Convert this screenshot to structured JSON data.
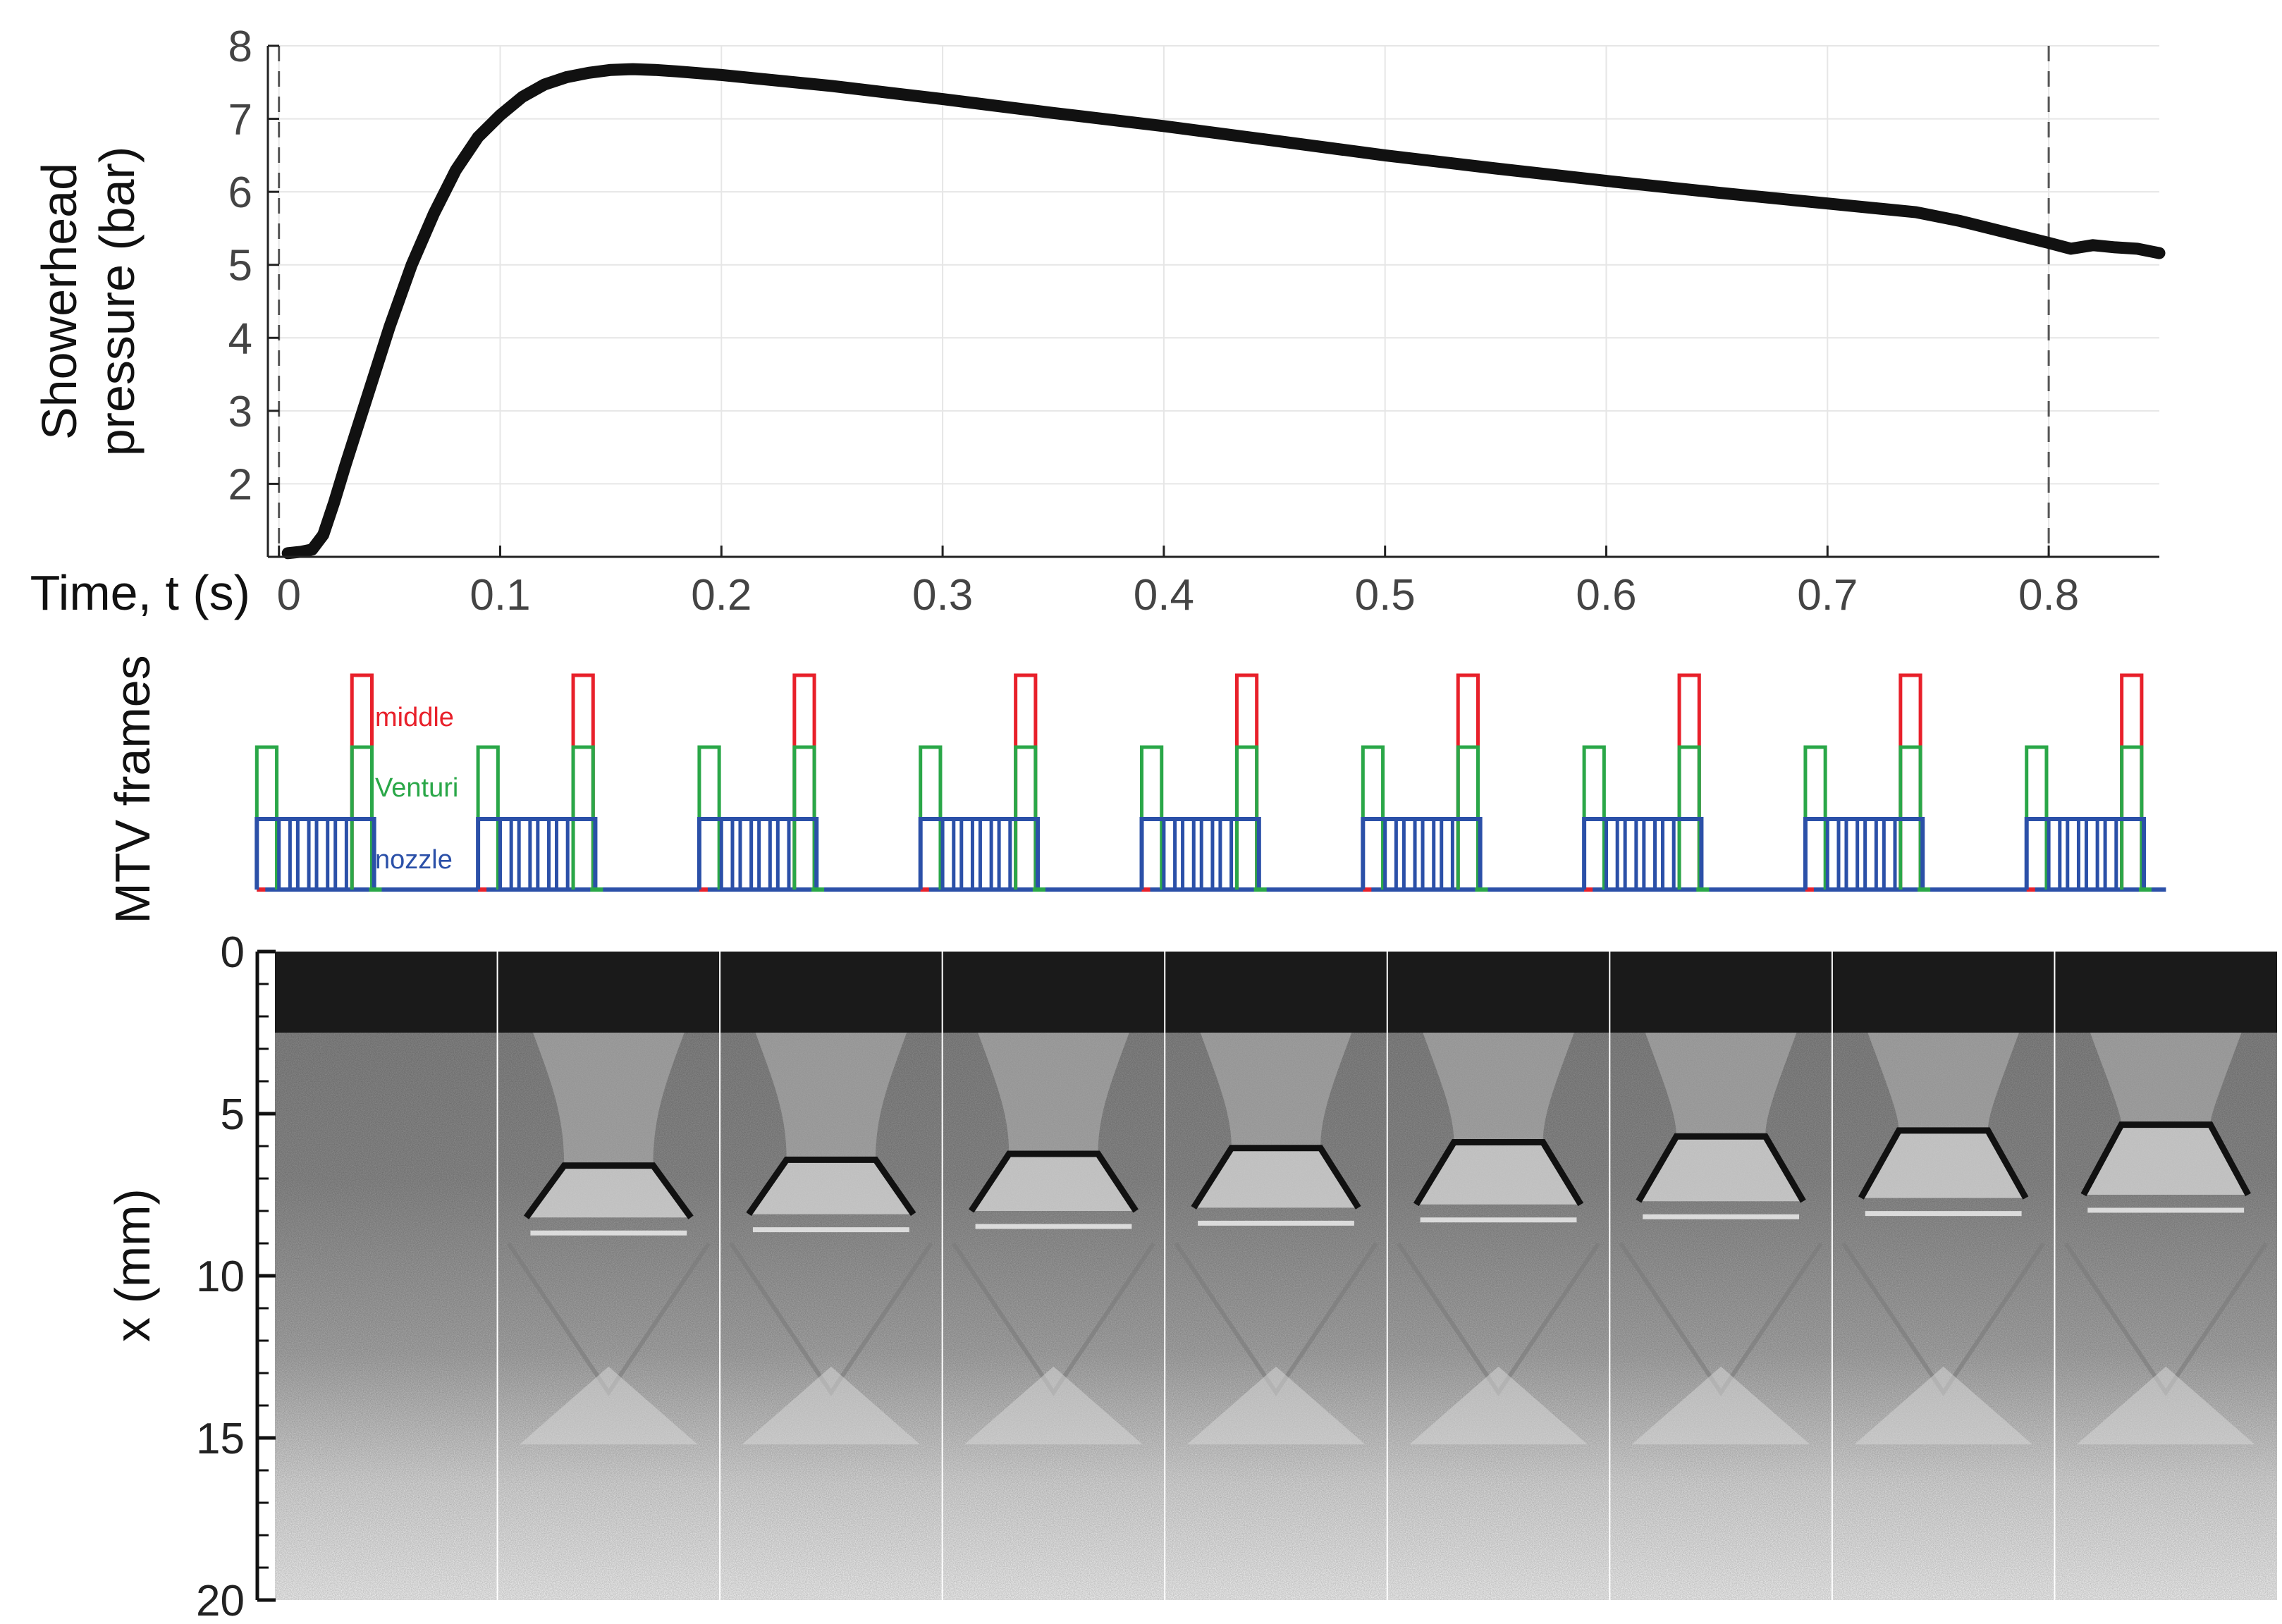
{
  "chart_data": [
    {
      "type": "line",
      "xlabel": "Time, t (s)",
      "ylabel": [
        "Showerhead",
        "pressure (bar)"
      ],
      "xlim": [
        -0.005,
        0.85
      ],
      "ylim": [
        1,
        8
      ],
      "xticks": [
        0,
        0.1,
        0.2,
        0.3,
        0.4,
        0.5,
        0.6,
        0.7,
        0.8
      ],
      "xtick_labels": [
        "0",
        "0.1",
        "0.2",
        "0.3",
        "0.4",
        "0.5",
        "0.6",
        "0.7",
        "0.8"
      ],
      "yticks": [
        2,
        3,
        4,
        5,
        6,
        7,
        8
      ],
      "ytick_labels": [
        "2",
        "3",
        "4",
        "5",
        "6",
        "7",
        "8"
      ],
      "grid": true,
      "reference_lines_x": [
        0,
        0.8
      ],
      "colors": {
        "line": "#111111",
        "grid": "#e6e6e6",
        "reference": "#555555"
      },
      "series": [
        {
          "x": [
            0.004,
            0.01,
            0.015,
            0.02,
            0.025,
            0.03,
            0.04,
            0.05,
            0.06,
            0.07,
            0.08,
            0.09,
            0.1,
            0.11,
            0.12,
            0.13,
            0.14,
            0.15,
            0.16,
            0.17,
            0.18,
            0.2,
            0.25,
            0.3,
            0.35,
            0.4,
            0.45,
            0.5,
            0.55,
            0.6,
            0.65,
            0.7,
            0.74,
            0.76,
            0.78,
            0.8,
            0.81,
            0.82,
            0.83,
            0.84,
            0.85
          ],
          "y": [
            1.05,
            1.07,
            1.1,
            1.3,
            1.75,
            2.25,
            3.2,
            4.15,
            5.0,
            5.7,
            6.3,
            6.75,
            7.05,
            7.3,
            7.47,
            7.57,
            7.63,
            7.67,
            7.68,
            7.67,
            7.65,
            7.6,
            7.45,
            7.27,
            7.08,
            6.9,
            6.7,
            6.5,
            6.32,
            6.15,
            5.99,
            5.84,
            5.72,
            5.6,
            5.45,
            5.3,
            5.22,
            5.27,
            5.24,
            5.22,
            5.16
          ]
        }
      ]
    },
    {
      "type": "line",
      "ylabel": "MTV frames",
      "labels": {
        "middle": "middle",
        "venturi": "Venturi",
        "nozzle": "nozzle"
      },
      "colors": {
        "middle": "#e8202a",
        "venturi": "#2aa748",
        "nozzle": "#2b50a8"
      },
      "cycle_start_times_s": [
        -0.01,
        0.09,
        0.19,
        0.29,
        0.39,
        0.49,
        0.59,
        0.69,
        0.79
      ]
    },
    {
      "type": "other",
      "ylabel": "x (mm)",
      "ylim": [
        0,
        20
      ],
      "yticks": [
        0,
        5,
        10,
        15,
        20
      ],
      "ytick_labels": [
        "0",
        "5",
        "10",
        "15",
        "20"
      ],
      "image_count": 9
    }
  ]
}
